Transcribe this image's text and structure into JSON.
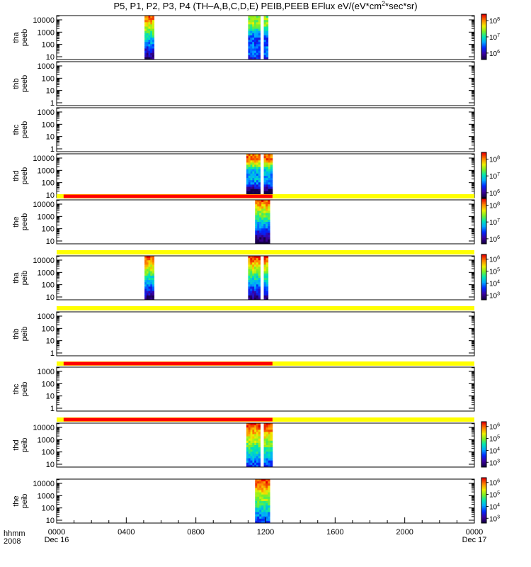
{
  "chart_data": {
    "type": "heatmap",
    "title": "P5, P1, P2, P3, P4 (TH–A,B,C,D,E) PEIB,PEEB EFlux eV/(eV*cm",
    "title_sup": "2",
    "title_end": "*sec*sr)",
    "x_axis": {
      "label_line1": "hhmm",
      "label_line2": "2008",
      "range_hours": [
        0,
        24
      ],
      "ticks": [
        {
          "hour": 0,
          "label": "0000",
          "sub": "Dec 16"
        },
        {
          "hour": 4,
          "label": "0400",
          "sub": ""
        },
        {
          "hour": 8,
          "label": "0800",
          "sub": ""
        },
        {
          "hour": 12,
          "label": "1200",
          "sub": ""
        },
        {
          "hour": 16,
          "label": "1600",
          "sub": ""
        },
        {
          "hour": 20,
          "label": "2000",
          "sub": ""
        },
        {
          "hour": 24,
          "label": "0000",
          "sub": "Dec 17"
        }
      ]
    },
    "panels": [
      {
        "probe": "tha",
        "product": "peeb",
        "yticks": [
          "10",
          "100",
          "1000",
          "10000"
        ],
        "colorbar": [
          "6",
          "7",
          "8"
        ],
        "cbmin": 5.6,
        "cbmax": 8.4,
        "segments": [
          {
            "start": 5.05,
            "end": 5.6,
            "profile": "a"
          },
          {
            "start": 11.0,
            "end": 11.7,
            "profile": "b"
          },
          {
            "start": 11.9,
            "end": 12.15,
            "profile": "b"
          }
        ],
        "bar": null
      },
      {
        "probe": "thb",
        "product": "peeb",
        "yticks": [
          "1",
          "10",
          "100",
          "1000"
        ],
        "colorbar": null,
        "segments": [],
        "bar": null
      },
      {
        "probe": "thc",
        "product": "peeb",
        "yticks": [
          "1",
          "10",
          "100",
          "1000"
        ],
        "colorbar": null,
        "segments": [],
        "bar": null
      },
      {
        "probe": "thd",
        "product": "peeb",
        "yticks": [
          "10",
          "100",
          "1000",
          "10000"
        ],
        "colorbar": [
          "6",
          "7",
          "8"
        ],
        "cbmin": 5.7,
        "cbmax": 8.4,
        "segments": [
          {
            "start": 10.9,
            "end": 11.7,
            "profile": "c"
          },
          {
            "start": 11.9,
            "end": 12.4,
            "profile": "c"
          }
        ],
        "bar": null
      },
      {
        "probe": "the",
        "product": "peeb",
        "yticks": [
          "10",
          "100",
          "1000",
          "10000"
        ],
        "colorbar": [
          "6",
          "7",
          "8"
        ],
        "cbmin": 5.7,
        "cbmax": 8.4,
        "segments": [
          {
            "start": 11.4,
            "end": 12.25,
            "profile": "d"
          }
        ],
        "bar": {
          "red_start": 0.4,
          "red_end": 12.4
        }
      },
      {
        "probe": "tha",
        "product": "peib",
        "yticks": [
          "10",
          "100",
          "1000",
          "10000"
        ],
        "colorbar": [
          "3",
          "4",
          "5",
          "6"
        ],
        "cbmin": 2.6,
        "cbmax": 6.4,
        "segments": [
          {
            "start": 5.05,
            "end": 5.6,
            "profile": "e"
          },
          {
            "start": 11.0,
            "end": 11.7,
            "profile": "e"
          },
          {
            "start": 11.9,
            "end": 12.15,
            "profile": "e"
          }
        ],
        "bar": {
          "red_start": null,
          "red_end": null
        }
      },
      {
        "probe": "thb",
        "product": "peib",
        "yticks": [
          "1",
          "10",
          "100",
          "1000"
        ],
        "colorbar": null,
        "segments": [],
        "bar": {
          "red_start": null,
          "red_end": null
        }
      },
      {
        "probe": "thc",
        "product": "peib",
        "yticks": [
          "1",
          "10",
          "100",
          "1000"
        ],
        "colorbar": null,
        "segments": [],
        "bar": {
          "red_start": 0.4,
          "red_end": 12.4
        }
      },
      {
        "probe": "thd",
        "product": "peib",
        "yticks": [
          "10",
          "100",
          "1000",
          "10000"
        ],
        "colorbar": [
          "3",
          "4",
          "5",
          "6"
        ],
        "cbmin": 2.6,
        "cbmax": 6.4,
        "segments": [
          {
            "start": 10.9,
            "end": 11.7,
            "profile": "f"
          },
          {
            "start": 11.9,
            "end": 12.4,
            "profile": "f"
          }
        ],
        "bar": {
          "red_start": 0.4,
          "red_end": 12.4
        }
      },
      {
        "probe": "the",
        "product": "peib",
        "yticks": [
          "10",
          "100",
          "1000",
          "10000"
        ],
        "colorbar": [
          "3",
          "4",
          "5",
          "6"
        ],
        "cbmin": 2.6,
        "cbmax": 6.4,
        "segments": [
          {
            "start": 11.4,
            "end": 12.25,
            "profile": "f"
          }
        ],
        "bar": null
      }
    ],
    "colors": {
      "bar_fill": "#ffff00",
      "bar_active": "#ff0000",
      "axis": "#000000"
    }
  }
}
